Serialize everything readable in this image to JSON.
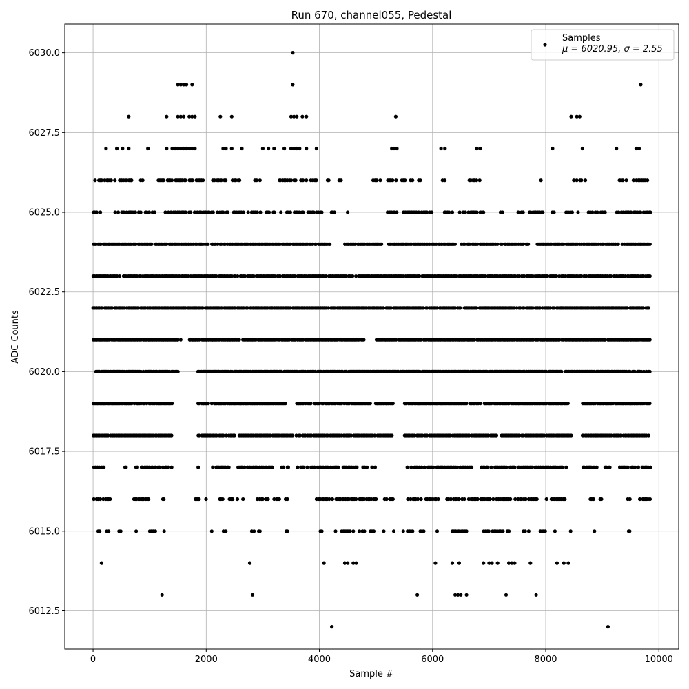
{
  "chart_data": {
    "type": "scatter",
    "title": "Run 670, channel055, Pedestal",
    "xlabel": "Sample #",
    "ylabel": "ADC Counts",
    "xlim": [
      -500,
      10350
    ],
    "ylim": [
      6011.3,
      6030.9
    ],
    "xticks": [
      0,
      2000,
      4000,
      6000,
      8000,
      10000
    ],
    "xtick_labels": [
      "0",
      "2000",
      "4000",
      "6000",
      "8000",
      "10000"
    ],
    "yticks": [
      6012.5,
      6015.0,
      6017.5,
      6020.0,
      6022.5,
      6025.0,
      6027.5,
      6030.0
    ],
    "ytick_labels": [
      "6012.5",
      "6015.0",
      "6017.5",
      "6020.0",
      "6022.5",
      "6025.0",
      "6027.5",
      "6030.0"
    ],
    "grid": true,
    "legend": {
      "placement": "top-right",
      "series_label": "Samples",
      "stats_text": "μ = 6020.95, σ = 2.55"
    },
    "marker_color": "#000000",
    "sample_count": 9850,
    "dense_levels": [
      {
        "y": 6018,
        "ranges": [
          [
            0,
            1400
          ],
          [
            1850,
            5300
          ],
          [
            5500,
            8450
          ],
          [
            8650,
            9850
          ]
        ]
      },
      {
        "y": 6019,
        "ranges": [
          [
            0,
            1400
          ],
          [
            1850,
            3400
          ],
          [
            3600,
            5300
          ],
          [
            5500,
            8400
          ],
          [
            8650,
            9850
          ]
        ]
      },
      {
        "y": 6020,
        "ranges": [
          [
            0,
            1500
          ],
          [
            1850,
            9850
          ]
        ]
      },
      {
        "y": 6021,
        "ranges": [
          [
            0,
            1550
          ],
          [
            1700,
            4800
          ],
          [
            5000,
            9850
          ]
        ]
      },
      {
        "y": 6022,
        "ranges": [
          [
            0,
            9850
          ]
        ]
      },
      {
        "y": 6023,
        "ranges": [
          [
            0,
            9850
          ]
        ]
      },
      {
        "y": 6024,
        "ranges": [
          [
            0,
            4200
          ],
          [
            4450,
            5100
          ],
          [
            5200,
            6400
          ],
          [
            6500,
            7700
          ],
          [
            7850,
            9850
          ]
        ]
      }
    ],
    "sparse_points": [
      {
        "x": 3530,
        "y": 6030
      },
      {
        "x": 1500,
        "y": 6029
      },
      {
        "x": 1550,
        "y": 6029
      },
      {
        "x": 1600,
        "y": 6029
      },
      {
        "x": 1650,
        "y": 6029
      },
      {
        "x": 1750,
        "y": 6029
      },
      {
        "x": 3530,
        "y": 6029
      },
      {
        "x": 9680,
        "y": 6029
      },
      {
        "x": 630,
        "y": 6028
      },
      {
        "x": 1300,
        "y": 6028
      },
      {
        "x": 1500,
        "y": 6028
      },
      {
        "x": 1550,
        "y": 6028
      },
      {
        "x": 1600,
        "y": 6028
      },
      {
        "x": 1700,
        "y": 6028
      },
      {
        "x": 1750,
        "y": 6028
      },
      {
        "x": 1800,
        "y": 6028
      },
      {
        "x": 2250,
        "y": 6028
      },
      {
        "x": 2450,
        "y": 6028
      },
      {
        "x": 3500,
        "y": 6028
      },
      {
        "x": 3550,
        "y": 6028
      },
      {
        "x": 3600,
        "y": 6028
      },
      {
        "x": 3700,
        "y": 6028
      },
      {
        "x": 3770,
        "y": 6028
      },
      {
        "x": 5350,
        "y": 6028
      },
      {
        "x": 8450,
        "y": 6028
      },
      {
        "x": 8550,
        "y": 6028
      },
      {
        "x": 8600,
        "y": 6028
      },
      {
        "x": 230,
        "y": 6027
      },
      {
        "x": 420,
        "y": 6027
      },
      {
        "x": 520,
        "y": 6027
      },
      {
        "x": 630,
        "y": 6027
      },
      {
        "x": 970,
        "y": 6027
      },
      {
        "x": 1300,
        "y": 6027
      },
      {
        "x": 1400,
        "y": 6027
      },
      {
        "x": 1450,
        "y": 6027
      },
      {
        "x": 1500,
        "y": 6027
      },
      {
        "x": 1550,
        "y": 6027
      },
      {
        "x": 1600,
        "y": 6027
      },
      {
        "x": 1650,
        "y": 6027
      },
      {
        "x": 1700,
        "y": 6027
      },
      {
        "x": 1750,
        "y": 6027
      },
      {
        "x": 1800,
        "y": 6027
      },
      {
        "x": 2300,
        "y": 6027
      },
      {
        "x": 2350,
        "y": 6027
      },
      {
        "x": 2450,
        "y": 6027
      },
      {
        "x": 2630,
        "y": 6027
      },
      {
        "x": 3000,
        "y": 6027
      },
      {
        "x": 3100,
        "y": 6027
      },
      {
        "x": 3200,
        "y": 6027
      },
      {
        "x": 3380,
        "y": 6027
      },
      {
        "x": 3500,
        "y": 6027
      },
      {
        "x": 3550,
        "y": 6027
      },
      {
        "x": 3600,
        "y": 6027
      },
      {
        "x": 3650,
        "y": 6027
      },
      {
        "x": 3770,
        "y": 6027
      },
      {
        "x": 3950,
        "y": 6027
      },
      {
        "x": 5280,
        "y": 6027
      },
      {
        "x": 5320,
        "y": 6027
      },
      {
        "x": 5370,
        "y": 6027
      },
      {
        "x": 6150,
        "y": 6027
      },
      {
        "x": 6220,
        "y": 6027
      },
      {
        "x": 6780,
        "y": 6027
      },
      {
        "x": 6840,
        "y": 6027
      },
      {
        "x": 8120,
        "y": 6027
      },
      {
        "x": 8650,
        "y": 6027
      },
      {
        "x": 9250,
        "y": 6027
      },
      {
        "x": 9600,
        "y": 6027
      },
      {
        "x": 9650,
        "y": 6027
      },
      {
        "x": 1220,
        "y": 6013
      },
      {
        "x": 2820,
        "y": 6013
      },
      {
        "x": 5730,
        "y": 6013
      },
      {
        "x": 6400,
        "y": 6013
      },
      {
        "x": 6450,
        "y": 6013
      },
      {
        "x": 6500,
        "y": 6013
      },
      {
        "x": 6600,
        "y": 6013
      },
      {
        "x": 7300,
        "y": 6013
      },
      {
        "x": 7830,
        "y": 6013
      },
      {
        "x": 4220,
        "y": 6012
      },
      {
        "x": 9100,
        "y": 6012
      },
      {
        "x": 150,
        "y": 6014
      },
      {
        "x": 2770,
        "y": 6014
      },
      {
        "x": 4080,
        "y": 6014
      },
      {
        "x": 4450,
        "y": 6014
      },
      {
        "x": 4500,
        "y": 6014
      },
      {
        "x": 4600,
        "y": 6014
      },
      {
        "x": 4650,
        "y": 6014
      },
      {
        "x": 6050,
        "y": 6014
      },
      {
        "x": 6350,
        "y": 6014
      },
      {
        "x": 6470,
        "y": 6014
      },
      {
        "x": 6900,
        "y": 6014
      },
      {
        "x": 7000,
        "y": 6014
      },
      {
        "x": 7050,
        "y": 6014
      },
      {
        "x": 7150,
        "y": 6014
      },
      {
        "x": 7350,
        "y": 6014
      },
      {
        "x": 7400,
        "y": 6014
      },
      {
        "x": 7450,
        "y": 6014
      },
      {
        "x": 7730,
        "y": 6014
      },
      {
        "x": 8200,
        "y": 6014
      },
      {
        "x": 8320,
        "y": 6014
      },
      {
        "x": 8400,
        "y": 6014
      }
    ],
    "sparse_bands": [
      {
        "y": 6026,
        "ranges": [
          [
            0,
            150
          ],
          [
            200,
            320
          ],
          [
            380,
            680
          ],
          [
            830,
            880
          ],
          [
            1150,
            1950
          ],
          [
            2100,
            2600
          ],
          [
            2850,
            2950
          ],
          [
            3250,
            3950
          ],
          [
            4130,
            4180
          ],
          [
            4350,
            4400
          ],
          [
            4950,
            5100
          ],
          [
            5200,
            5400
          ],
          [
            5450,
            5650
          ],
          [
            5750,
            5850
          ],
          [
            6170,
            6220
          ],
          [
            6550,
            6850
          ],
          [
            7900,
            7920
          ],
          [
            8450,
            8700
          ],
          [
            9100,
            9150
          ],
          [
            9300,
            9850
          ]
        ]
      },
      {
        "y": 6025,
        "ranges": [
          [
            0,
            150
          ],
          [
            350,
            1100
          ],
          [
            1150,
            2300
          ],
          [
            2350,
            3000
          ],
          [
            3050,
            4100
          ],
          [
            4200,
            4280
          ],
          [
            4470,
            4500
          ],
          [
            5200,
            5900
          ],
          [
            5950,
            6000
          ],
          [
            6200,
            6350
          ],
          [
            6450,
            6900
          ],
          [
            7200,
            7250
          ],
          [
            7450,
            7600
          ],
          [
            7700,
            7950
          ],
          [
            8100,
            8150
          ],
          [
            8300,
            8650
          ],
          [
            8750,
            9050
          ],
          [
            9250,
            9850
          ]
        ]
      },
      {
        "y": 6017,
        "ranges": [
          [
            0,
            200
          ],
          [
            550,
            600
          ],
          [
            750,
            1400
          ],
          [
            1850,
            1900
          ],
          [
            2100,
            2400
          ],
          [
            2550,
            3200
          ],
          [
            3300,
            3450
          ],
          [
            3600,
            5000
          ],
          [
            5550,
            6700
          ],
          [
            6850,
            8400
          ],
          [
            8650,
            9150
          ],
          [
            9300,
            9850
          ]
        ]
      },
      {
        "y": 6016,
        "ranges": [
          [
            0,
            300
          ],
          [
            650,
            1000
          ],
          [
            1100,
            1250
          ],
          [
            1800,
            2000
          ],
          [
            2200,
            2300
          ],
          [
            2400,
            2550
          ],
          [
            2650,
            2700
          ],
          [
            2900,
            3100
          ],
          [
            3200,
            3300
          ],
          [
            3400,
            3450
          ],
          [
            3950,
            5000
          ],
          [
            5150,
            5350
          ],
          [
            5550,
            6100
          ],
          [
            6250,
            7900
          ],
          [
            8000,
            8350
          ],
          [
            8750,
            8850
          ],
          [
            8950,
            9050
          ],
          [
            9450,
            9500
          ],
          [
            9650,
            9850
          ]
        ]
      },
      {
        "y": 6015,
        "ranges": [
          [
            50,
            120
          ],
          [
            200,
            300
          ],
          [
            450,
            500
          ],
          [
            750,
            800
          ],
          [
            1000,
            1100
          ],
          [
            1250,
            1300
          ],
          [
            2050,
            2100
          ],
          [
            2300,
            2350
          ],
          [
            2800,
            2950
          ],
          [
            3400,
            3450
          ],
          [
            4000,
            4100
          ],
          [
            4250,
            4300
          ],
          [
            4350,
            4600
          ],
          [
            4700,
            4800
          ],
          [
            4900,
            5000
          ],
          [
            5100,
            5150
          ],
          [
            5300,
            5350
          ],
          [
            5450,
            5500
          ],
          [
            5550,
            5650
          ],
          [
            5750,
            5850
          ],
          [
            6050,
            6100
          ],
          [
            6350,
            6600
          ],
          [
            6900,
            7350
          ],
          [
            7600,
            7700
          ],
          [
            7900,
            8000
          ],
          [
            8150,
            8200
          ],
          [
            8400,
            8450
          ],
          [
            8850,
            8900
          ],
          [
            9450,
            9500
          ]
        ]
      }
    ]
  }
}
